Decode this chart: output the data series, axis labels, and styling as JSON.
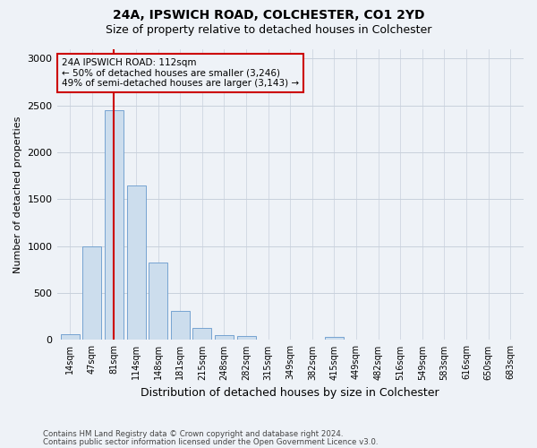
{
  "title1": "24A, IPSWICH ROAD, COLCHESTER, CO1 2YD",
  "title2": "Size of property relative to detached houses in Colchester",
  "xlabel": "Distribution of detached houses by size in Colchester",
  "ylabel": "Number of detached properties",
  "bar_labels": [
    "14sqm",
    "47sqm",
    "81sqm",
    "114sqm",
    "148sqm",
    "181sqm",
    "215sqm",
    "248sqm",
    "282sqm",
    "315sqm",
    "349sqm",
    "382sqm",
    "415sqm",
    "449sqm",
    "482sqm",
    "516sqm",
    "549sqm",
    "583sqm",
    "616sqm",
    "650sqm",
    "683sqm"
  ],
  "bar_values": [
    60,
    1000,
    2450,
    1650,
    830,
    310,
    130,
    55,
    45,
    0,
    0,
    0,
    30,
    0,
    0,
    0,
    0,
    0,
    0,
    0,
    0
  ],
  "bar_color": "#ccdded",
  "bar_edge_color": "#6699cc",
  "vline_index": 2,
  "vline_color": "#cc0000",
  "annotation_line1": "24A IPSWICH ROAD: 112sqm",
  "annotation_line2": "← 50% of detached houses are smaller (3,246)",
  "annotation_line3": "49% of semi-detached houses are larger (3,143) →",
  "annotation_box_edge": "#cc0000",
  "ylim": [
    0,
    3100
  ],
  "yticks": [
    0,
    500,
    1000,
    1500,
    2000,
    2500,
    3000
  ],
  "footer1": "Contains HM Land Registry data © Crown copyright and database right 2024.",
  "footer2": "Contains public sector information licensed under the Open Government Licence v3.0.",
  "bg_color": "#eef2f7",
  "grid_color": "#c8d0dc"
}
